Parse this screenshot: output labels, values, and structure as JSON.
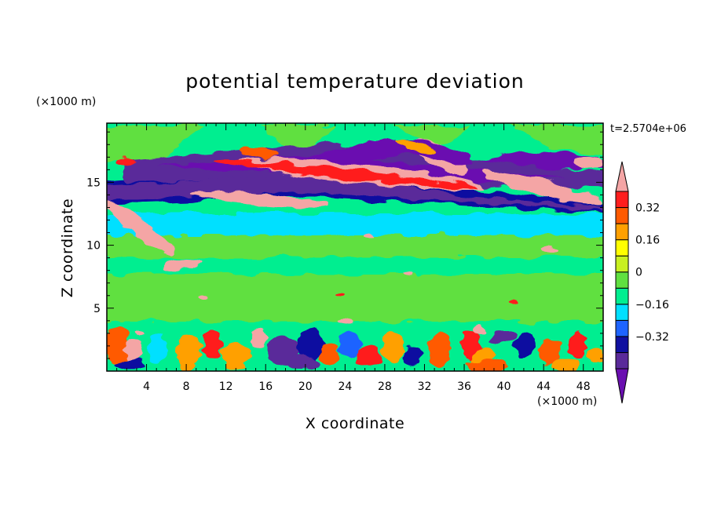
{
  "chart_data": {
    "type": "heatmap",
    "title": "potential temperature deviation",
    "xlabel": "X coordinate",
    "ylabel": "Z coordinate",
    "x_unit": "(×1000 m)",
    "y_unit": "(×1000 m)",
    "time_label": "t=2.5704e+06",
    "xlim": [
      0,
      50
    ],
    "ylim": [
      0,
      19.7
    ],
    "x_ticks": [
      4,
      8,
      12,
      16,
      20,
      24,
      28,
      32,
      36,
      40,
      44,
      48
    ],
    "y_ticks": [
      5,
      10,
      15
    ],
    "colorbar": {
      "levels": [
        -0.48,
        -0.4,
        -0.32,
        -0.24,
        -0.16,
        -0.08,
        0,
        0.08,
        0.16,
        0.24,
        0.32,
        0.4,
        0.48
      ],
      "tick_values": [
        -0.32,
        -0.16,
        0,
        0.16,
        0.32
      ],
      "tick_labels": [
        "−0.32",
        "−0.16",
        "0",
        "0.16",
        "0.32"
      ],
      "colors": [
        "#6a0fb0",
        "#5a2a9a",
        "#1010a0",
        "#1e64ff",
        "#00e0ff",
        "#00ee90",
        "#60e040",
        "#c8f020",
        "#ffff00",
        "#ffa000",
        "#ff5a00",
        "#ff1e1e",
        "#f4a5a5"
      ]
    }
  }
}
